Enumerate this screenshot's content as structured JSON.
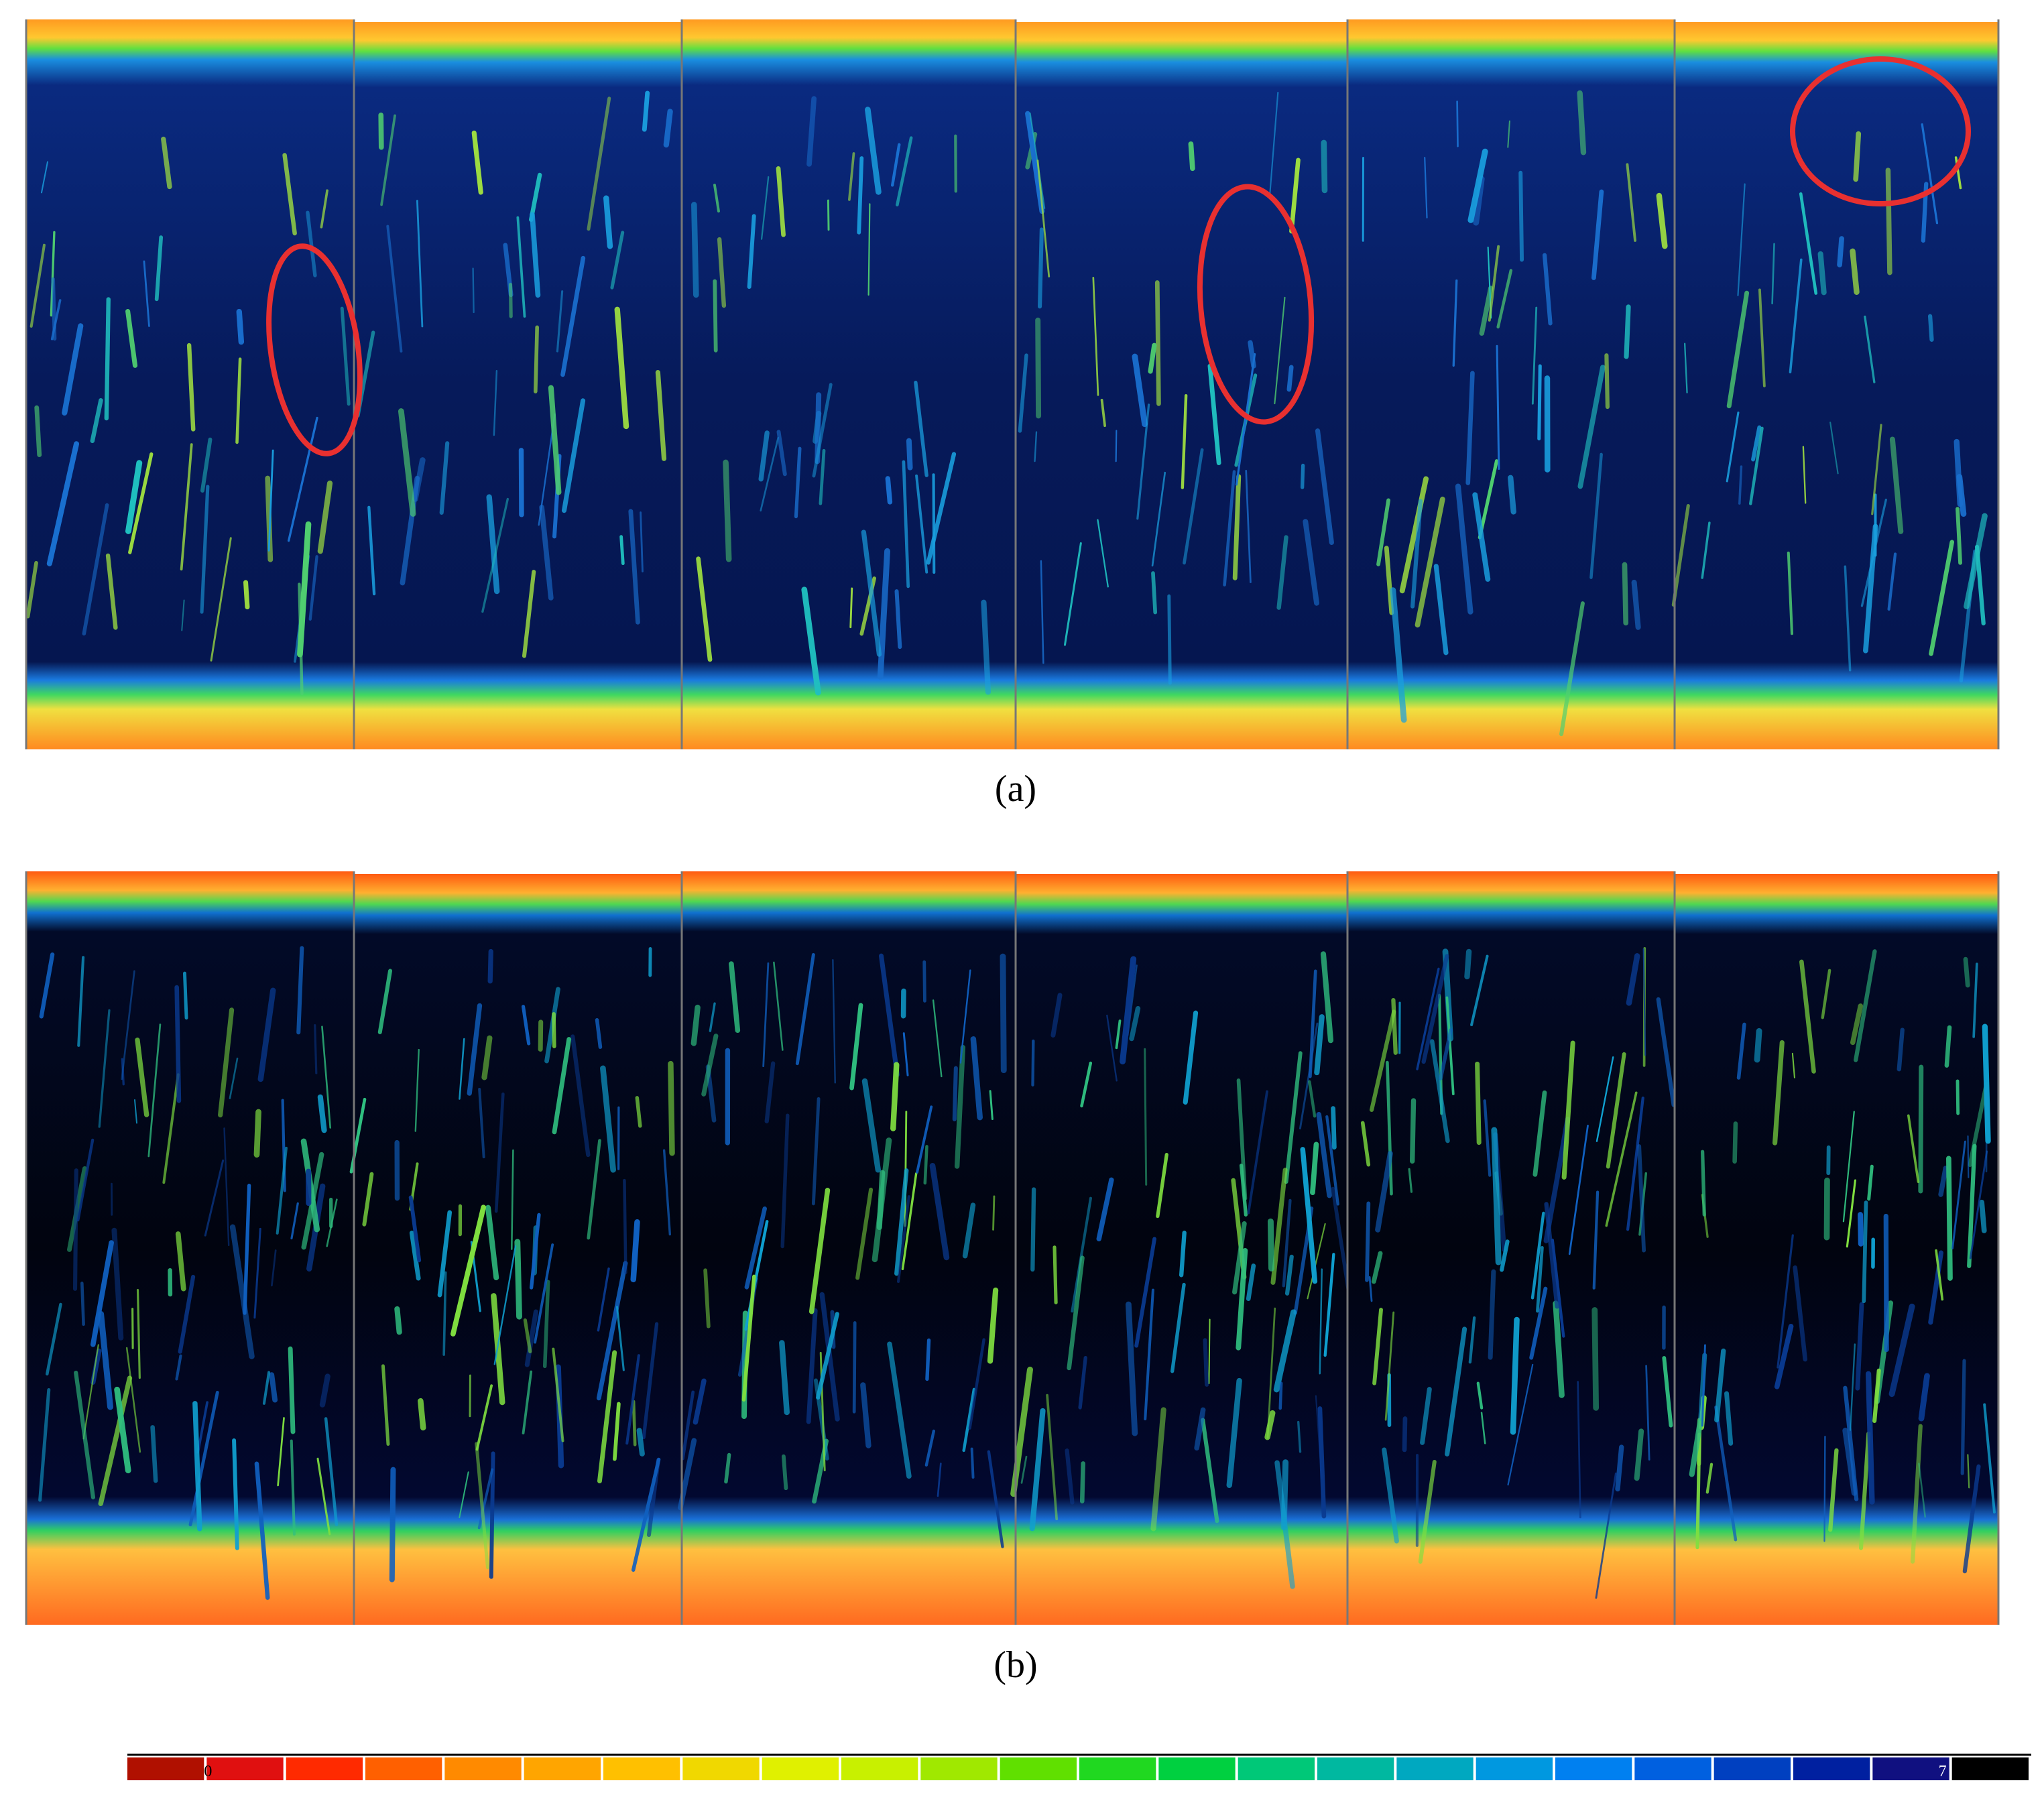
{
  "panels": [
    {
      "label": "(a)"
    },
    {
      "label": "(b)"
    }
  ],
  "colorbar": {
    "min_label": "0",
    "max_label": "7",
    "colors": [
      "#b01000",
      "#e01010",
      "#ff2a00",
      "#ff6000",
      "#ff8a00",
      "#ffa500",
      "#ffc000",
      "#f0d800",
      "#e0f000",
      "#c8f000",
      "#a0e800",
      "#60e000",
      "#20d820",
      "#00d040",
      "#00c878",
      "#00b8a0",
      "#00a8c0",
      "#0098e0",
      "#0080f0",
      "#0060e0",
      "#0040c0",
      "#0020a0",
      "#101080",
      "#000000"
    ]
  }
}
